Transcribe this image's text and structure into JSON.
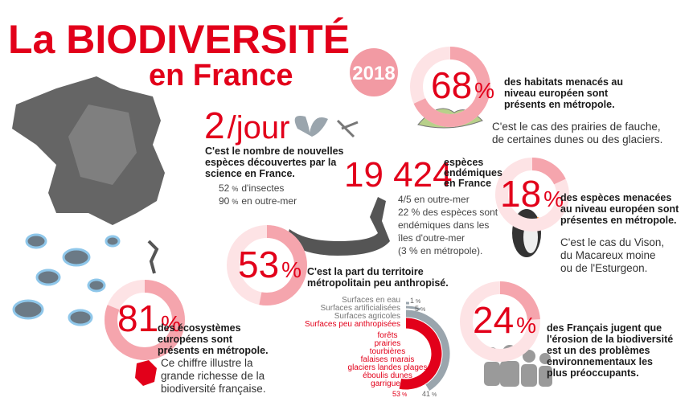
{
  "header": {
    "title": "La BIODIVERSITÉ",
    "subtitle": "en France",
    "year": "2018"
  },
  "stats": [
    {
      "value": 68,
      "unit": "%",
      "text": [
        "des habitats menacés au",
        "niveau européen sont",
        "présents en métropole."
      ],
      "note": [
        "C'est le cas des prairies de fauche,",
        "de certaines dunes ou des glaciers."
      ]
    },
    {
      "value": 18,
      "unit": "%",
      "text": [
        "des espèces menacées",
        "au niveau européen sont",
        "présentes en métropole."
      ],
      "note": [
        "C'est le cas du Vison,",
        "du Macareux moine",
        "ou de l'Esturgeon."
      ]
    },
    {
      "value": 53,
      "unit": "%",
      "text": [
        "C'est la part du territoire",
        "métropolitain peu anthropisé."
      ]
    },
    {
      "value": 81,
      "unit": "%",
      "text": [
        "des écosystèmes",
        "européens sont",
        "présents en métropole."
      ],
      "note": [
        "Ce chiffre illustre la",
        "grande richesse de la",
        "biodiversité française."
      ]
    },
    {
      "value": 24,
      "unit": "%",
      "text": [
        "des Français jugent que",
        "l'érosion de la biodiversité",
        "est un des problèmes",
        "environnementaux les",
        "plus préoccupants."
      ]
    }
  ],
  "discoveries": {
    "value": 2,
    "unit": "/jour",
    "text": [
      "C'est le nombre de nouvelles",
      "espèces découvertes par la",
      "science en France."
    ],
    "details": [
      {
        "value": 52,
        "unit": "%",
        "label": "d'insectes"
      },
      {
        "value": 90,
        "unit": "%",
        "label": "en outre-mer"
      }
    ]
  },
  "endemic": {
    "number": "19 424",
    "label": [
      "espèces",
      "endémiques",
      "en France"
    ],
    "details": [
      "4/5  en outre-mer",
      "22 % des espèces sont",
      "endémiques dans les",
      "îles d'outre-mer",
      "(3 % en métropole)."
    ]
  },
  "land_use": {
    "items": [
      {
        "label": "Surfaces en eau",
        "value": 1,
        "unit": "%"
      },
      {
        "label": "Surfaces artificialisées",
        "value": 5,
        "unit": "%"
      },
      {
        "label": "Surfaces agricoles",
        "value": 41,
        "unit": "%"
      },
      {
        "label": "Surfaces peu anthropisées",
        "value": 53,
        "unit": "%"
      }
    ],
    "sub_items": [
      "forêts",
      "prairies",
      "tourbières",
      "falaises marais",
      "glaciers landes plages",
      "éboulis dunes",
      "garrigues"
    ]
  }
}
